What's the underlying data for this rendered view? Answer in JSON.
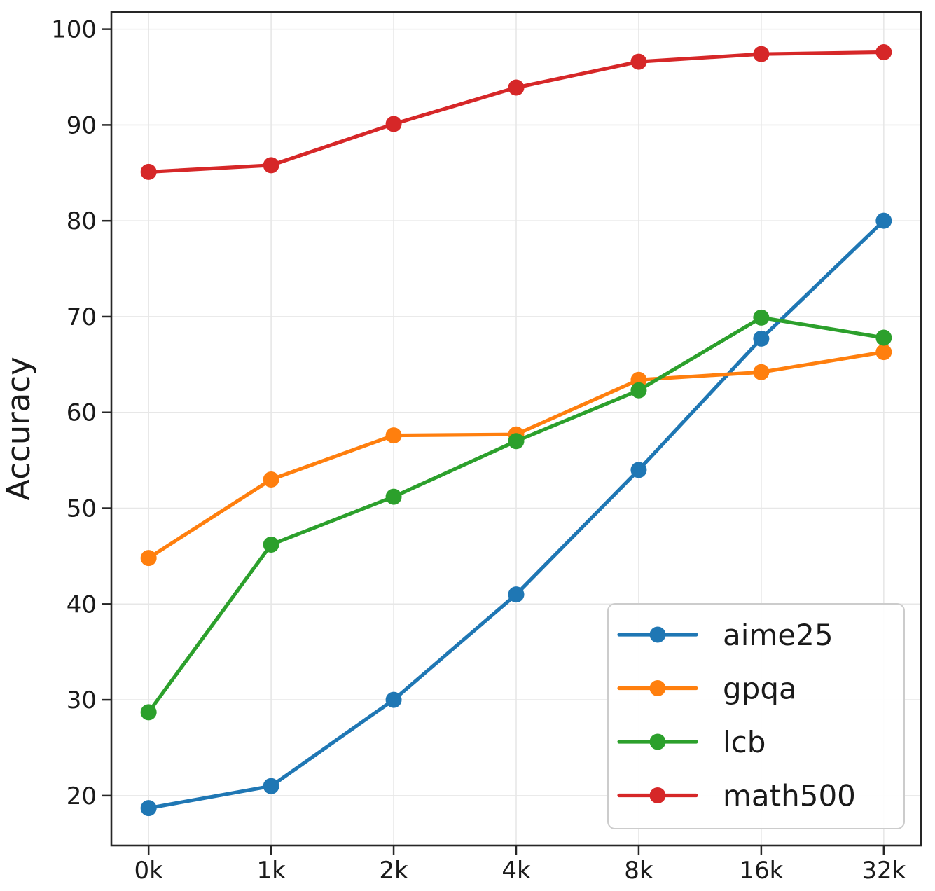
{
  "chart_data": {
    "type": "line",
    "title": "",
    "xlabel": "",
    "ylabel": "Accuracy",
    "x_categories": [
      "0k",
      "1k",
      "2k",
      "4k",
      "8k",
      "16k",
      "32k"
    ],
    "y_ticks": [
      20,
      30,
      40,
      50,
      60,
      70,
      80,
      90,
      100
    ],
    "ylim": [
      14.8,
      101.8
    ],
    "grid": true,
    "legend_position": "lower right",
    "marker": "circle",
    "series": [
      {
        "name": "aime25",
        "color": "#1f77b4",
        "values": [
          18.7,
          21.0,
          30.0,
          41.0,
          54.0,
          67.7,
          80.0
        ]
      },
      {
        "name": "gpqa",
        "color": "#ff7f0e",
        "values": [
          44.8,
          53.0,
          57.6,
          57.7,
          63.4,
          64.2,
          66.3
        ]
      },
      {
        "name": "lcb",
        "color": "#2ca02c",
        "values": [
          28.7,
          46.2,
          51.2,
          57.0,
          62.3,
          69.9,
          67.8
        ]
      },
      {
        "name": "math500",
        "color": "#d62728",
        "values": [
          85.1,
          85.8,
          90.1,
          93.9,
          96.6,
          97.4,
          97.6
        ]
      }
    ]
  },
  "style_colors": {
    "grid": "#e7e7e7",
    "spine": "#262626",
    "tick": "#262626",
    "legend_border": "#cccccc",
    "legend_background": "#ffffff"
  }
}
